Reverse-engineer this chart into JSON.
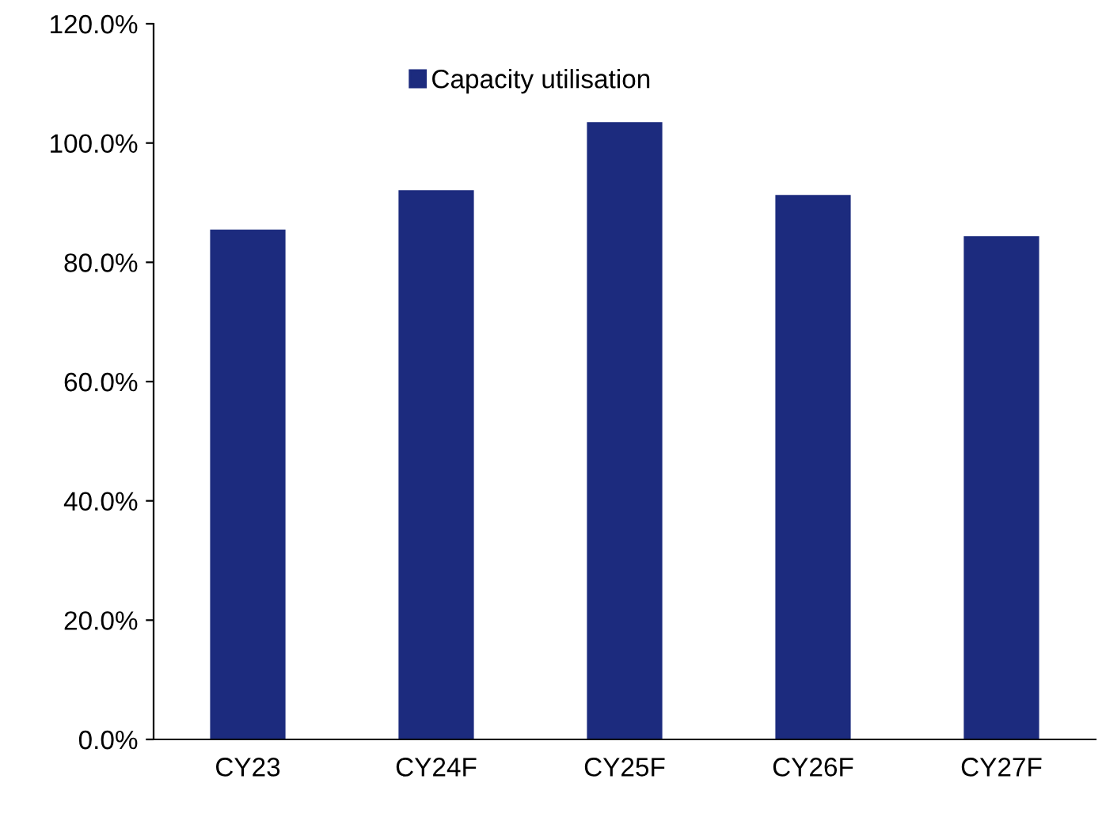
{
  "chart_data": {
    "type": "bar",
    "categories": [
      "CY23",
      "CY24F",
      "CY25F",
      "CY26F",
      "CY27F"
    ],
    "series": [
      {
        "name": "Capacity utilisation",
        "color": "#1c2b7e",
        "values": [
          85.5,
          92.1,
          103.5,
          91.3,
          84.4
        ]
      }
    ],
    "ylim": [
      0,
      120
    ],
    "yticks": [
      {
        "value": 0,
        "label": "0.0%"
      },
      {
        "value": 20,
        "label": "20.0%"
      },
      {
        "value": 40,
        "label": "40.0%"
      },
      {
        "value": 60,
        "label": "60.0%"
      },
      {
        "value": 80,
        "label": "80.0%"
      },
      {
        "value": 100,
        "label": "100.0%"
      },
      {
        "value": 120,
        "label": "120.0%"
      }
    ],
    "grid": false,
    "legend": "top"
  }
}
